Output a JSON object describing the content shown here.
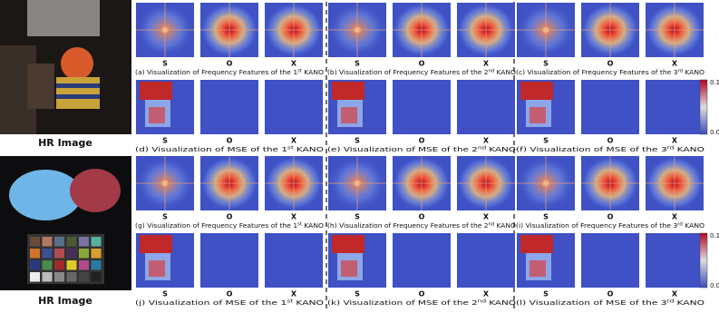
{
  "hr_images": [
    {
      "label": "HR Image"
    },
    {
      "label": "HR Image"
    }
  ],
  "tile_labels": [
    "S",
    "O",
    "X"
  ],
  "rows": [
    {
      "captions": [
        {
          "text": "(a) Visualization of Frequency Features of the 1",
          "sup": "st",
          "end": "KANO"
        },
        {
          "text": "(b) Visualization of Frequency Features of the 2",
          "sup": "nd",
          "end": "KANO"
        },
        {
          "text": "(c) Visualization of Frequency Features of the 3",
          "sup": "rd",
          "end": "KANO"
        }
      ]
    },
    {
      "captions": [
        {
          "text": "(d) Visualization of MSE of the 1",
          "sup": "st",
          "end": "KANO"
        },
        {
          "text": "(e) Visualization of MSE of the 2",
          "sup": "nd",
          "end": "KANO"
        },
        {
          "text": "(f) Visualization of MSE of the 3",
          "sup": "rd",
          "end": "KANO"
        }
      ]
    },
    {
      "captions": [
        {
          "text": "(g) Visualization of Frequency Features of the 1",
          "sup": "st",
          "end": "KANO"
        },
        {
          "text": "(h) Visualization of Frequency Features of the 2",
          "sup": "nd",
          "end": "KANO"
        },
        {
          "text": "(i) Visualization of Frequency Features of the 3",
          "sup": "rd",
          "end": "KANO"
        }
      ]
    },
    {
      "captions": [
        {
          "text": "(j) Visualization of MSE of the 1",
          "sup": "st",
          "end": "KANO"
        },
        {
          "text": "(k) Visualization of MSE of the 2",
          "sup": "nd",
          "end": "KANO"
        },
        {
          "text": "(l) Visualization of MSE of the 3",
          "sup": "rd",
          "end": "KANO"
        }
      ]
    }
  ],
  "colorbar": {
    "max": "0.1",
    "min": "0.0"
  }
}
